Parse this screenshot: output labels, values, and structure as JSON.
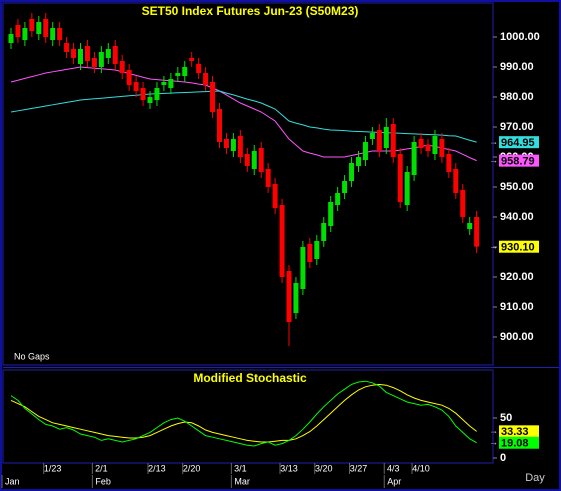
{
  "chart_data": [
    {
      "type": "candlestick",
      "title": "SET50 Index Futures Jun-23 (S50M23)",
      "note": "No Gaps",
      "ylim": [
        890.67,
        1010.67
      ],
      "yticks": [
        {
          "value": 900,
          "label": "900.00"
        },
        {
          "value": 910,
          "label": "910.00"
        },
        {
          "value": 920,
          "label": "920.00"
        },
        {
          "value": 930,
          "label": "930.00"
        },
        {
          "value": 940,
          "label": "940.00"
        },
        {
          "value": 950,
          "label": "950.00"
        },
        {
          "value": 960,
          "label": "960.00"
        },
        {
          "value": 970,
          "label": "970.00"
        },
        {
          "value": 980,
          "label": "980.00"
        },
        {
          "value": 990,
          "label": "990.00"
        },
        {
          "value": 1000,
          "label": "1000.00"
        }
      ],
      "up_color": "#00e000",
      "down_color": "#ff0000",
      "last_color": "#ffff00",
      "open": [
        998,
        1004,
        999,
        1006,
        1001,
        1006,
        999,
        1003,
        998,
        996,
        991,
        997,
        993,
        990,
        993,
        997,
        992,
        989,
        985,
        983,
        978,
        979,
        984,
        983,
        987,
        987,
        993,
        991,
        988,
        985,
        976,
        966,
        962,
        967,
        961,
        956,
        963,
        956,
        951,
        944,
        922,
        908,
        916,
        931,
        926,
        932,
        937,
        944,
        948,
        952,
        957,
        959,
        966,
        969,
        963,
        971,
        961,
        944,
        954,
        966,
        964,
        961,
        966,
        961,
        956,
        949,
        936,
        940
      ],
      "high": [
        1003,
        1006,
        1005,
        1008,
        1007,
        1008,
        1005,
        1005,
        1000,
        998,
        998,
        999,
        995,
        997,
        998,
        999,
        994,
        991,
        987,
        985,
        982,
        985,
        987,
        988,
        990,
        992,
        995,
        993,
        990,
        987,
        978,
        968,
        968,
        969,
        963,
        964,
        965,
        958,
        953,
        946,
        924,
        920,
        932,
        933,
        934,
        940,
        947,
        950,
        954,
        960,
        962,
        967,
        970,
        971,
        973,
        973,
        963,
        957,
        967,
        968,
        966,
        969,
        968,
        963,
        958,
        951,
        940,
        942
      ],
      "low": [
        996,
        998,
        997,
        1000,
        999,
        998,
        997,
        997,
        993,
        991,
        989,
        990,
        988,
        988,
        991,
        989,
        986,
        982,
        980,
        977,
        976,
        977,
        982,
        981,
        985,
        985,
        990,
        986,
        982,
        973,
        963,
        961,
        960,
        958,
        955,
        954,
        953,
        948,
        941,
        918,
        897,
        906,
        914,
        923,
        924,
        930,
        935,
        942,
        946,
        950,
        955,
        957,
        964,
        960,
        961,
        958,
        943,
        942,
        952,
        961,
        960,
        959,
        958,
        953,
        946,
        938,
        934,
        928
      ],
      "close": [
        1001,
        1000,
        1003,
        1002,
        1005,
        1000,
        1003,
        999,
        995,
        993,
        996,
        992,
        990,
        995,
        996,
        991,
        988,
        984,
        982,
        979,
        980,
        983,
        985,
        986,
        988,
        990,
        992,
        988,
        984,
        975,
        965,
        963,
        966,
        960,
        957,
        962,
        955,
        950,
        943,
        920,
        905,
        918,
        930,
        925,
        932,
        938,
        945,
        948,
        952,
        958,
        960,
        965,
        968,
        962,
        970,
        960,
        945,
        955,
        965,
        963,
        962,
        967,
        960,
        955,
        948,
        940,
        938,
        930.1
      ],
      "value_labels": [
        null,
        null,
        null,
        null,
        null,
        null,
        null,
        null,
        null,
        null,
        null,
        null,
        null,
        null,
        null,
        null,
        null,
        null,
        null,
        null,
        null,
        null,
        null,
        null,
        null,
        null,
        null,
        null,
        null,
        null,
        null,
        null,
        null,
        null,
        null,
        null,
        null,
        null,
        null,
        null,
        null,
        null,
        null,
        null,
        null,
        null,
        null,
        null,
        null,
        null,
        null,
        null,
        null,
        null,
        null,
        null,
        null,
        null,
        null,
        null,
        null,
        null,
        null,
        null,
        null,
        null,
        null,
        "930.10"
      ],
      "series": [
        {
          "color": "#ff55ff",
          "values": [
            985,
            985.6,
            986.2,
            986.8,
            987.4,
            988,
            988.4,
            988.8,
            989.2,
            989.6,
            990,
            989.8,
            989.6,
            989.4,
            989.2,
            989,
            988.4,
            987.8,
            987.2,
            986.6,
            986,
            985.8,
            985.6,
            985.4,
            985.2,
            985,
            984.7,
            984.3,
            984,
            983,
            982,
            980.7,
            979.3,
            978,
            977,
            976,
            975,
            973.5,
            972,
            969,
            966,
            964,
            962,
            961.3,
            960.7,
            960,
            960,
            960,
            960,
            960.5,
            961,
            961.5,
            962,
            962,
            962,
            962,
            962.3,
            962.7,
            963,
            963.5,
            964,
            963.5,
            963,
            962.5,
            962,
            960.9,
            959.8,
            958.79
          ]
        },
        {
          "color": "#33dddd",
          "values": [
            975,
            975.4,
            975.8,
            976.2,
            976.6,
            977,
            977.4,
            977.8,
            978.2,
            978.6,
            979,
            979.2,
            979.4,
            979.6,
            979.8,
            980,
            980.2,
            980.4,
            980.6,
            980.8,
            981,
            981.1,
            981.2,
            981.3,
            981.4,
            981.5,
            981.6,
            981.7,
            981.8,
            981.9,
            982,
            981.3,
            980.7,
            980,
            979.3,
            978.7,
            978,
            977,
            976,
            974,
            972,
            971.3,
            970.7,
            970,
            969.7,
            969.3,
            969,
            968.9,
            968.8,
            968.6,
            968.5,
            968.4,
            968.3,
            968.2,
            968.1,
            968,
            967.9,
            967.8,
            967.7,
            967.6,
            967.5,
            967.4,
            967.3,
            967.1,
            967,
            966.3,
            965.6,
            964.95
          ]
        }
      ]
    },
    {
      "type": "line",
      "title": "Modified Stochastic",
      "xlabel": "Day",
      "ylim": [
        -6.25,
        107.5
      ],
      "yticks": [
        0,
        50
      ],
      "categories": [
        null,
        null,
        null,
        null,
        null,
        null,
        "1/23",
        null,
        null,
        null,
        null,
        null,
        null,
        "2/1",
        null,
        null,
        null,
        null,
        null,
        null,
        null,
        "2/13",
        null,
        null,
        null,
        null,
        "2/20",
        null,
        null,
        null,
        null,
        null,
        null,
        "3/1",
        null,
        null,
        null,
        null,
        null,
        null,
        "3/13",
        null,
        null,
        null,
        null,
        "3/20",
        null,
        null,
        null,
        null,
        "3/27",
        null,
        null,
        null,
        null,
        "4/3",
        null,
        null,
        null,
        "4/10",
        null,
        null,
        null,
        null,
        null,
        null,
        null,
        null
      ],
      "months": [
        "Jan",
        null,
        null,
        null,
        null,
        null,
        null,
        null,
        null,
        null,
        null,
        null,
        null,
        "Feb",
        null,
        null,
        null,
        null,
        null,
        null,
        null,
        null,
        null,
        null,
        null,
        null,
        null,
        null,
        null,
        null,
        null,
        null,
        null,
        "Mar",
        null,
        null,
        null,
        null,
        null,
        null,
        null,
        null,
        null,
        null,
        null,
        null,
        null,
        null,
        null,
        null,
        null,
        null,
        null,
        null,
        null,
        "Apr",
        null,
        null,
        null,
        null,
        null,
        null,
        null,
        null,
        null,
        null,
        null,
        null
      ],
      "series": [
        {
          "color": "#ffff00",
          "values": [
            72,
            68,
            64,
            58,
            52,
            48,
            44,
            42,
            40,
            38,
            36,
            34,
            32,
            30,
            28,
            27,
            26,
            25,
            25,
            26,
            28,
            32,
            36,
            40,
            43,
            45,
            44,
            40,
            35,
            32,
            30,
            28,
            26,
            24,
            22,
            21,
            20,
            20,
            21,
            22,
            22,
            24,
            28,
            33,
            40,
            48,
            56,
            64,
            72,
            79,
            85,
            89,
            91,
            92,
            91,
            88,
            84,
            79,
            75,
            72,
            70,
            68,
            66,
            62,
            56,
            48,
            40,
            33.33
          ]
        },
        {
          "color": "#00ff00",
          "values": [
            78,
            72,
            62,
            55,
            48,
            42,
            40,
            36,
            38,
            35,
            30,
            28,
            26,
            22,
            24,
            22,
            20,
            22,
            24,
            28,
            32,
            38,
            44,
            48,
            50,
            46,
            40,
            34,
            28,
            26,
            24,
            22,
            20,
            18,
            16,
            15,
            18,
            20,
            16,
            18,
            22,
            28,
            36,
            45,
            55,
            64,
            72,
            80,
            86,
            92,
            95,
            96,
            94,
            90,
            82,
            78,
            74,
            70,
            68,
            66,
            67,
            64,
            60,
            52,
            40,
            32,
            24,
            19.08
          ]
        }
      ]
    }
  ]
}
